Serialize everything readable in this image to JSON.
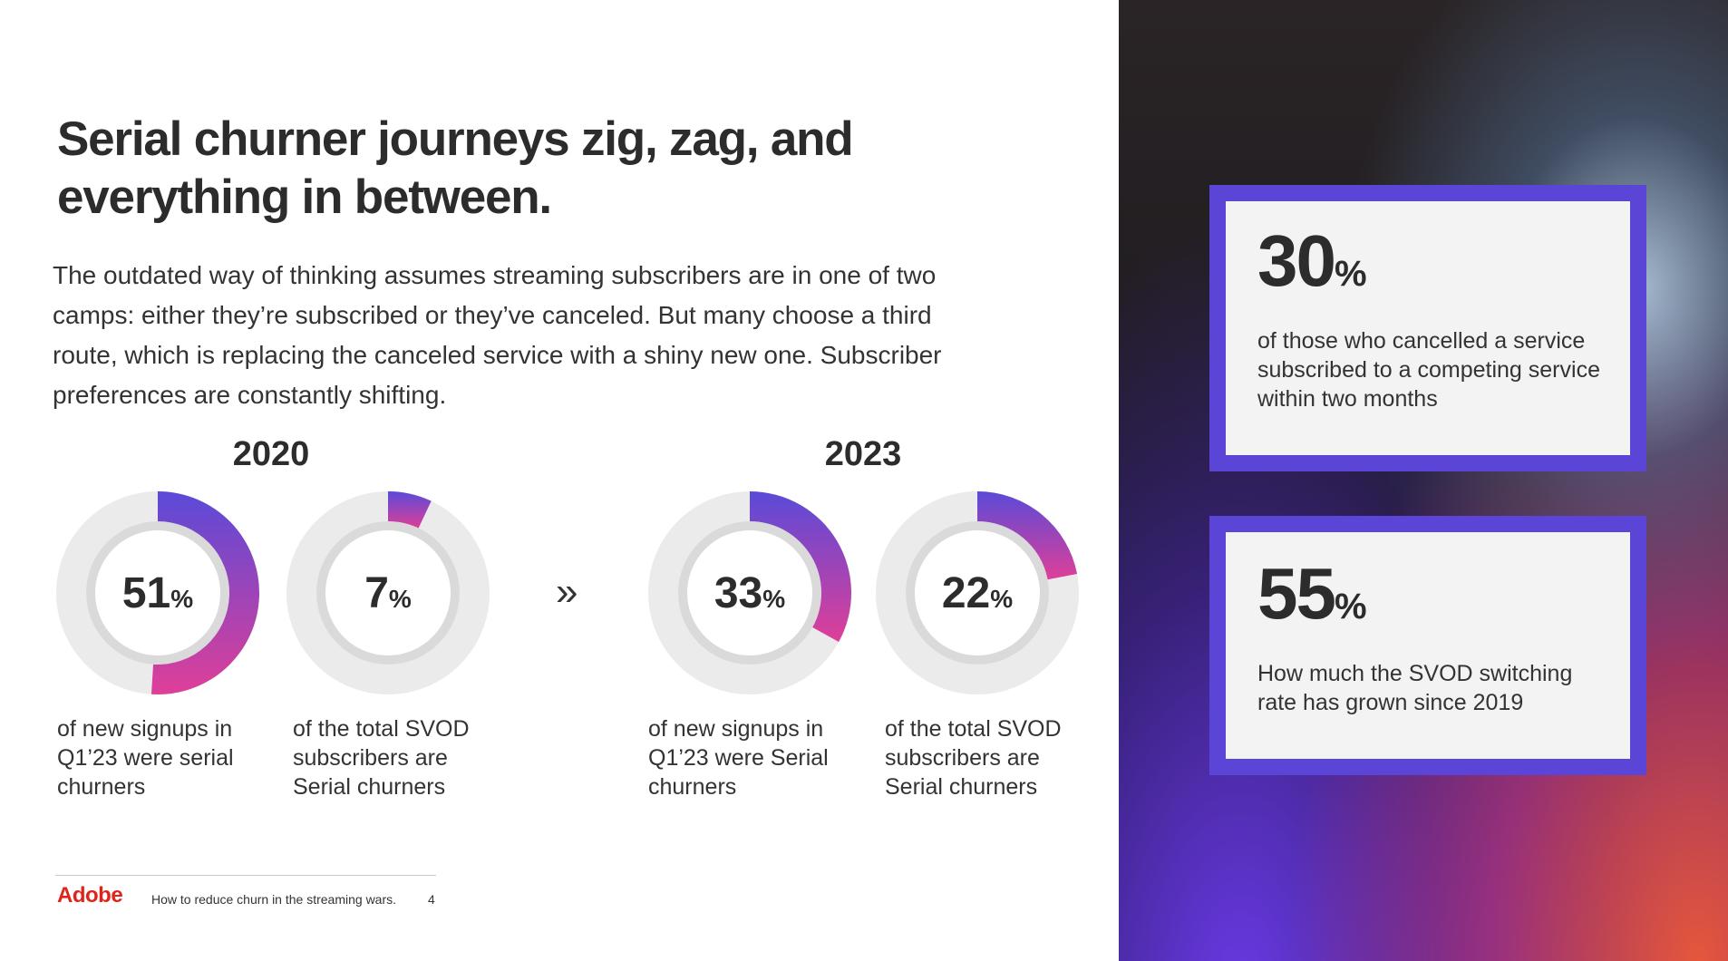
{
  "title": "Serial churner journeys zig, zag, and everything in between.",
  "body": "The outdated way of thinking assumes streaming subscribers are in one of two camps: either they’re subscribed or they’ve canceled. But many choose a third route, which is replacing the canceled service with a shiny new one. Subscriber preferences are constantly shifting.",
  "groups": [
    {
      "year": "2020",
      "donuts": [
        {
          "value": 51,
          "unit": "%",
          "caption": "of new signups in Q1’23 were serial churners"
        },
        {
          "value": 7,
          "unit": "%",
          "caption": "of the total SVOD subscribers are Serial churners"
        }
      ]
    },
    {
      "year": "2023",
      "donuts": [
        {
          "value": 33,
          "unit": "%",
          "caption": "of new signups in Q1’23 were Serial churners"
        },
        {
          "value": 22,
          "unit": "%",
          "caption": "of the total SVOD subscribers are Serial churners"
        }
      ]
    }
  ],
  "separator": "»",
  "stats": [
    {
      "value": "30",
      "unit": "%",
      "text": "of those who cancelled a service subscribed to a competing service within two months"
    },
    {
      "value": "55",
      "unit": "%",
      "text": "How much the SVOD switching rate has grown since 2019"
    }
  ],
  "footer": {
    "brand": "Adobe",
    "text": "How to reduce churn in the streaming wars.",
    "page": "4"
  }
}
